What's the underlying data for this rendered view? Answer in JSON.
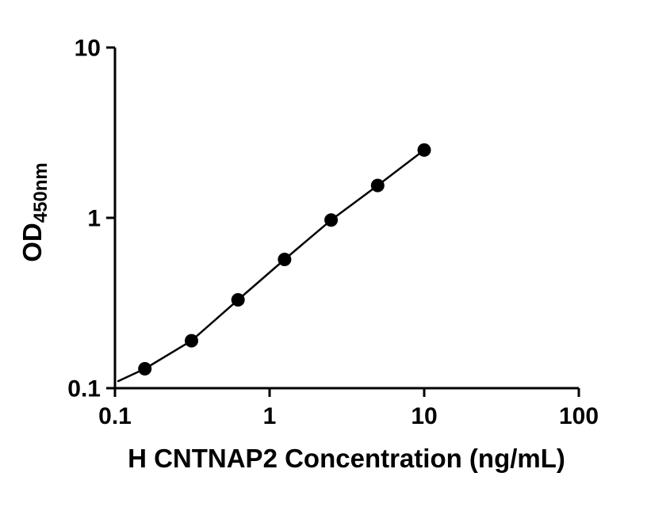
{
  "figure": {
    "background": "#ffffff",
    "axis_color": "#000000"
  },
  "chart_data": {
    "type": "scatter",
    "xlabel": "H CNTNAP2 Concentration (ng/mL)",
    "ylabel_main": "OD",
    "ylabel_sub": "450nm",
    "x_scale": "log",
    "y_scale": "log",
    "xlim": [
      0.1,
      100
    ],
    "ylim": [
      0.1,
      10
    ],
    "x_ticks": [
      0.1,
      1,
      10,
      100
    ],
    "x_tick_labels": [
      "0.1",
      "1",
      "10",
      "100"
    ],
    "y_ticks": [
      0.1,
      1,
      10
    ],
    "y_tick_labels": [
      "0.1",
      "1",
      "10"
    ],
    "grid": "off",
    "legend": "none",
    "series": [
      {
        "x": [
          0.156,
          0.3125,
          0.625,
          1.25,
          2.5,
          5,
          10
        ],
        "y": [
          0.13,
          0.19,
          0.33,
          0.57,
          0.97,
          1.55,
          2.5
        ],
        "marker": "circle",
        "marker_color": "#000000",
        "line_color": "#000000"
      }
    ],
    "trend_line_start": {
      "x": 0.105,
      "y": 0.11
    }
  }
}
